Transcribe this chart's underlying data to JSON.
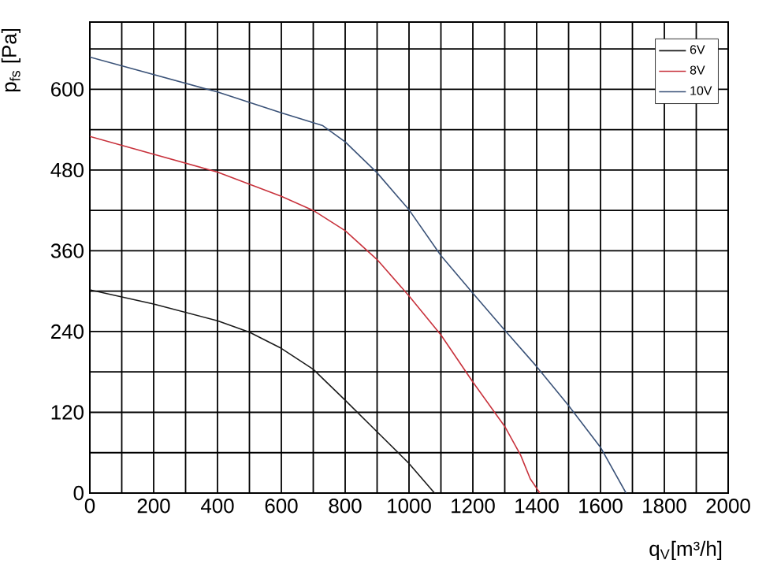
{
  "chart_data": {
    "type": "line",
    "xlabel": "q$_{V}$[m³/h]",
    "ylabel": "p$_{fs}$ [Pa]",
    "xlim": [
      0,
      2000
    ],
    "ylim": [
      0,
      700
    ],
    "xticks": [
      0,
      {
        "value": 100,
        "label": null
      },
      200,
      {
        "value": 300,
        "label": null
      },
      400,
      {
        "value": 500,
        "label": null
      },
      600,
      {
        "value": 700,
        "label": null
      },
      800,
      {
        "value": 900,
        "label": null
      },
      1000,
      {
        "value": 1100,
        "label": null
      },
      1200,
      {
        "value": 1300,
        "label": null
      },
      1400,
      {
        "value": 1500,
        "label": null
      },
      1600,
      {
        "value": 1700,
        "label": null
      },
      1800,
      {
        "value": 1900,
        "label": null
      },
      2000
    ],
    "yticks": [
      0,
      {
        "value": 60,
        "label": null
      },
      120,
      {
        "value": 180,
        "label": null
      },
      240,
      {
        "value": 300,
        "label": null
      },
      360,
      {
        "value": 420,
        "label": null
      },
      480,
      {
        "value": 540,
        "label": null
      },
      600,
      {
        "value": 660,
        "label": null
      }
    ],
    "grid": true,
    "legend": "top right",
    "marker": "none",
    "line_style": "solid",
    "series": [
      {
        "name": "6V",
        "color": "#1a1a1a",
        "x": [
          0,
          200,
          400,
          500,
          600,
          700,
          800,
          900,
          1000,
          1080
        ],
        "values": [
          302,
          281,
          256,
          239,
          215,
          184,
          138,
          91,
          44,
          0
        ]
      },
      {
        "name": "8V",
        "color": "#c8323c",
        "x": [
          0,
          400,
          600,
          700,
          800,
          900,
          1000,
          1100,
          1200,
          1300,
          1350,
          1380,
          1410
        ],
        "values": [
          530,
          477,
          441,
          420,
          390,
          347,
          293,
          235,
          165,
          99,
          56,
          21,
          0
        ]
      },
      {
        "name": "10V",
        "color": "#3a5278",
        "x": [
          0,
          400,
          600,
          730,
          800,
          900,
          1000,
          1100,
          1200,
          1300,
          1400,
          1500,
          1600,
          1680
        ],
        "values": [
          648,
          596,
          565,
          546,
          522,
          476,
          421,
          353,
          297,
          242,
          188,
          130,
          68,
          0
        ]
      }
    ]
  }
}
